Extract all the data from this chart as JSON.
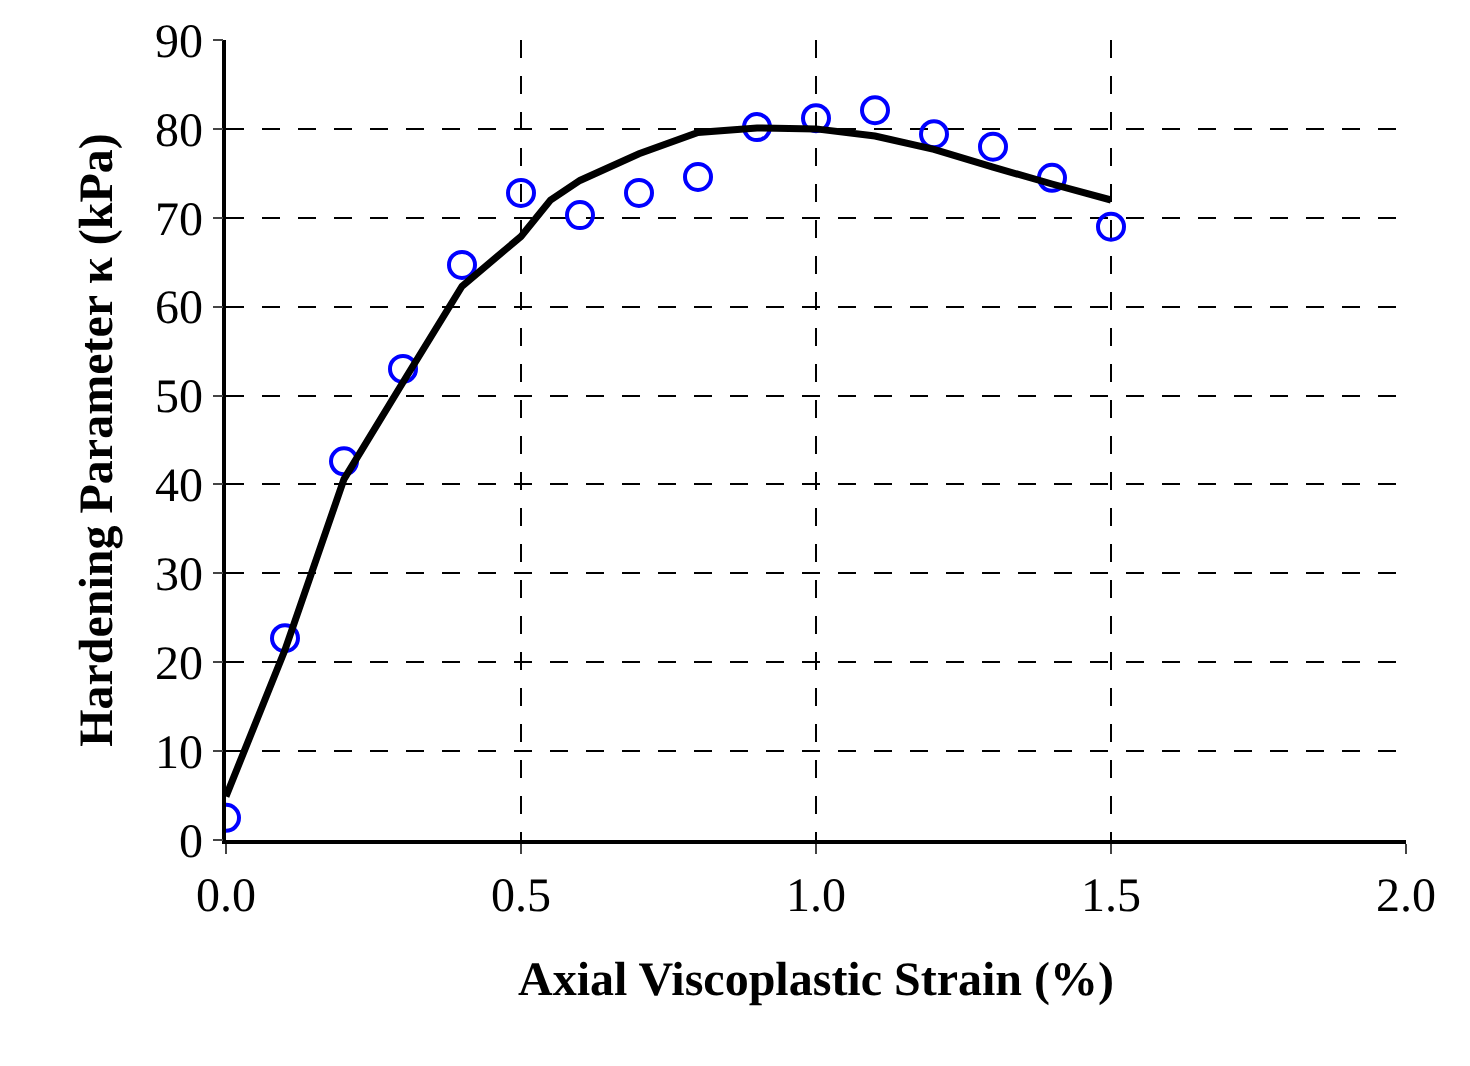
{
  "chart_data": {
    "type": "scatter",
    "xlabel": "Axial Viscoplastic Strain (%)",
    "ylabel": "Hardening Parameter κ (kPa)",
    "series": [
      {
        "marker": "circle",
        "color": "#0000ff",
        "x": [
          0,
          0.1,
          0.2,
          0.3,
          0.4,
          0.5,
          0.6,
          0.7,
          0.8,
          0.9,
          1.0,
          1.1,
          1.2,
          1.3,
          1.4,
          1.5
        ],
        "values": [
          2.5,
          22.7,
          42.6,
          53,
          64.7,
          72.8,
          70.3,
          72.8,
          74.6,
          80.2,
          81.2,
          82.1,
          79.4,
          78,
          74.5,
          69
        ]
      },
      {
        "type": "line",
        "color": "#000000",
        "line_style": "solid",
        "x": [
          0,
          0.1,
          0.2,
          0.3,
          0.4,
          0.5,
          0.55,
          0.6,
          0.7,
          0.8,
          0.9,
          1.0,
          1.1,
          1.2,
          1.3,
          1.4,
          1.5
        ],
        "values": [
          4.9,
          21.4,
          40.6,
          51.5,
          62.3,
          67.9,
          72,
          74.2,
          77.2,
          79.6,
          80.1,
          80,
          79.2,
          77.7,
          75.7,
          73.8,
          72
        ]
      }
    ],
    "xlim": [
      0,
      2
    ],
    "xticks": [
      {
        "value": 0,
        "label": "0.0"
      },
      0.5,
      {
        "value": 1,
        "label": "1.0"
      },
      1.5,
      {
        "value": 2,
        "label": "2.0"
      }
    ],
    "ylim": [
      0,
      90
    ],
    "yticks": [
      0,
      10,
      20,
      30,
      40,
      50,
      60,
      70,
      80,
      90
    ],
    "grid": true,
    "legend": false
  }
}
